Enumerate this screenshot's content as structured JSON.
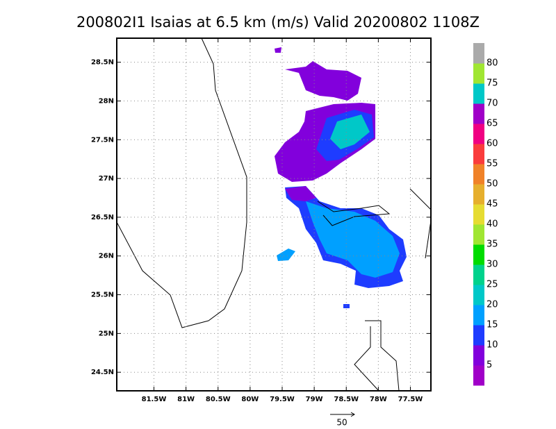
{
  "map": {
    "title": "200802I1 Isaias at 6.5 km (m/s) Valid 20200802 1108Z",
    "xlim": [
      -82.08,
      -77.18
    ],
    "ylim": [
      24.26,
      28.81
    ],
    "xticks": [
      {
        "value": -81.5,
        "label": "81.5W"
      },
      {
        "value": -81,
        "label": "81W"
      },
      {
        "value": -80.5,
        "label": "80.5W"
      },
      {
        "value": -80,
        "label": "80W"
      },
      {
        "value": -79.5,
        "label": "79.5W"
      },
      {
        "value": -79,
        "label": "79W"
      },
      {
        "value": -78.5,
        "label": "78.5W"
      },
      {
        "value": -78,
        "label": "78W"
      },
      {
        "value": -77.5,
        "label": "77.5W"
      }
    ],
    "yticks": [
      {
        "value": 24.5,
        "label": "24.5N"
      },
      {
        "value": 25,
        "label": "25N"
      },
      {
        "value": 25.5,
        "label": "25.5N"
      },
      {
        "value": 26,
        "label": "26N"
      },
      {
        "value": 26.5,
        "label": "26.5N"
      },
      {
        "value": 27,
        "label": "27N"
      },
      {
        "value": 27.5,
        "label": "27.5N"
      },
      {
        "value": 28,
        "label": "28N"
      },
      {
        "value": 28.5,
        "label": "28.5N"
      }
    ],
    "grid": true,
    "colorbar": {
      "colors": [
        "#a000c8",
        "#8200dc",
        "#1e3cff",
        "#00a0ff",
        "#00c8c8",
        "#00d28c",
        "#00dc00",
        "#a0e632",
        "#e6dc32",
        "#e6af2d",
        "#f08228",
        "#fa3c3c",
        "#f00082",
        "#a000c8",
        "#00c8c8",
        "#a0e632",
        "#aaaaaa"
      ],
      "labels": [
        5,
        10,
        15,
        20,
        25,
        30,
        35,
        40,
        45,
        50,
        55,
        60,
        65,
        70,
        75,
        80
      ]
    },
    "vector_reference": 50
  }
}
